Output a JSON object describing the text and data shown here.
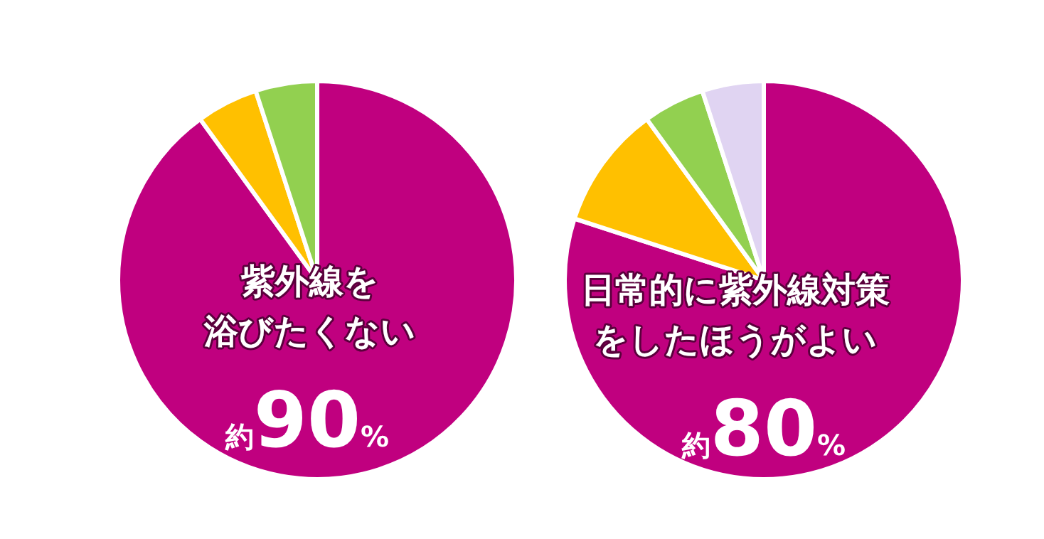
{
  "chart_data": [
    {
      "type": "pie",
      "categories": [
        "紫外線を浴びたくない",
        null,
        null
      ],
      "values": [
        90,
        5,
        5
      ],
      "colors": [
        "#c0007f",
        "#ffc000",
        "#92d050"
      ],
      "value_labels": [
        "約90%",
        null,
        null
      ]
    },
    {
      "type": "pie",
      "categories": [
        "日常的に紫外線対策をしたほうがよい",
        null,
        null,
        null
      ],
      "values": [
        80,
        10,
        5,
        5
      ],
      "colors": [
        "#c0007f",
        "#ffc000",
        "#92d050",
        "#e0d4f2"
      ],
      "value_labels": [
        "約80%",
        null,
        null,
        null
      ]
    }
  ]
}
